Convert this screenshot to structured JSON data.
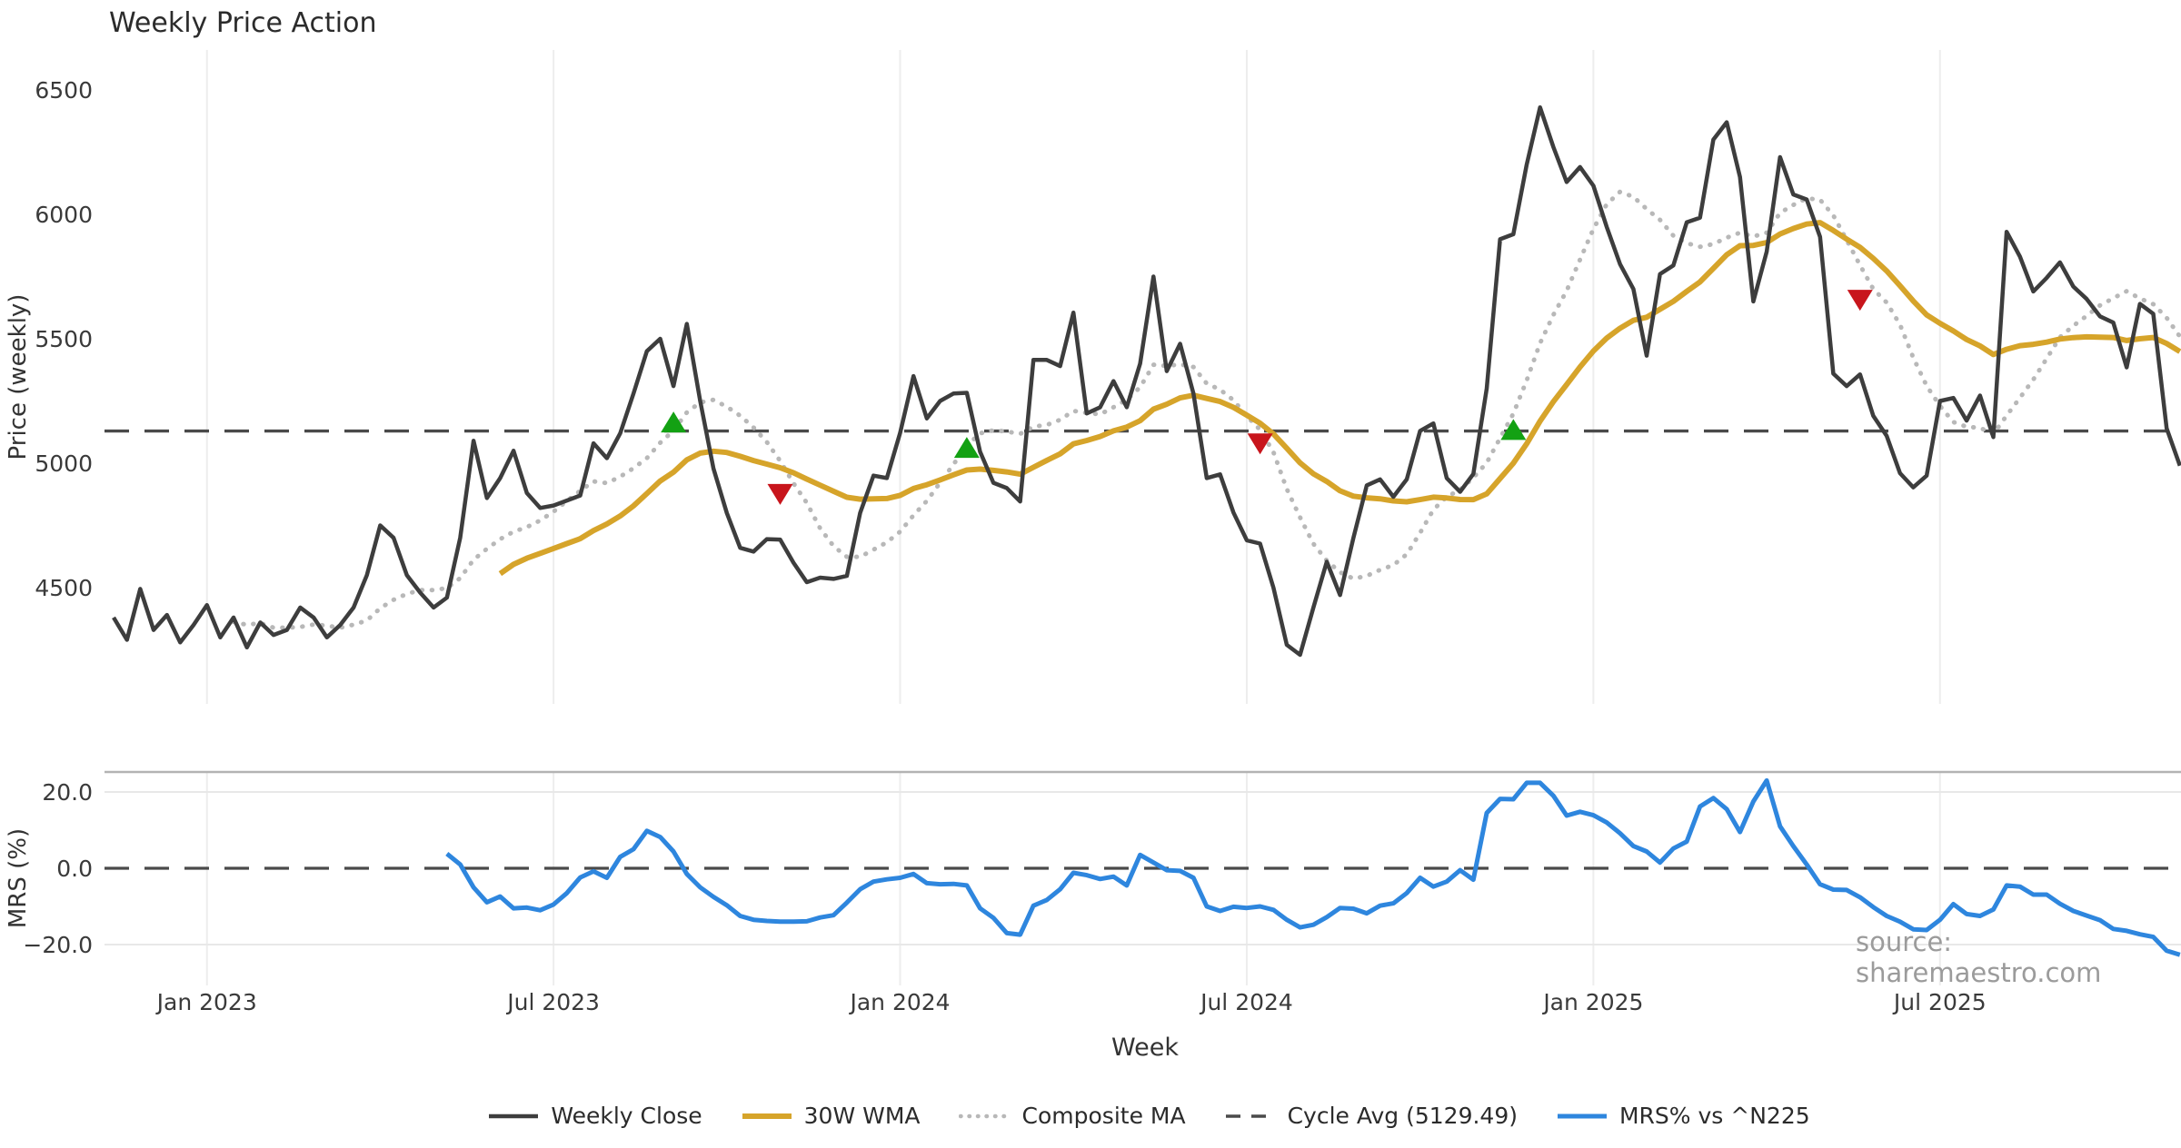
{
  "title": "Weekly Price Action",
  "xlabel": "Week",
  "watermark": "source: sharemaestro.com",
  "colors": {
    "close": "#3d3d3d",
    "wma": "#d6a42a",
    "composite": "#b8b8b8",
    "cycle": "#4a4a4a",
    "mrs": "#2e86de",
    "buy": "#13a113",
    "sell": "#c8151c",
    "grid": "#ededed",
    "mrs_grid": "#e8e8e8",
    "spine": "#b3b3b3",
    "tick_text": "#3a3a3a",
    "title_text": "#2b2b2b",
    "watermark_text": "#9b9b9b"
  },
  "legend": [
    {
      "label": "Weekly Close",
      "style": "solid",
      "color_key": "close",
      "width": 4.5
    },
    {
      "label": "30W WMA",
      "style": "solid",
      "color_key": "wma",
      "width": 6
    },
    {
      "label": "Composite MA",
      "style": "dotted",
      "color_key": "composite",
      "width": 4.5
    },
    {
      "label": "Cycle Avg (5129.49)",
      "style": "dashed",
      "color_key": "cycle",
      "width": 3.5
    },
    {
      "label": "MRS% vs ^N225",
      "style": "solid",
      "color_key": "mrs",
      "width": 5
    }
  ],
  "chart_data": {
    "type": "line",
    "title": "Weekly Price Action",
    "xlabel": "Week",
    "x_unit": "weekly index (0 = first plotted week, ~7 weeks before Jan 2023)",
    "x_ticks": [
      {
        "week": 7,
        "label": "Jan 2023"
      },
      {
        "week": 33,
        "label": "Jul 2023"
      },
      {
        "week": 59,
        "label": "Jan 2024"
      },
      {
        "week": 85,
        "label": "Jul 2024"
      },
      {
        "week": 111,
        "label": "Jan 2025"
      },
      {
        "week": 137,
        "label": "Jul 2025"
      }
    ],
    "panels": [
      {
        "name": "price",
        "ylabel": "Price (weekly)",
        "ylim": [
          4030,
          6660
        ],
        "yticks": [
          {
            "v": 6500,
            "label": "6500"
          },
          {
            "v": 6000,
            "label": "6000"
          },
          {
            "v": 5500,
            "label": "5500"
          },
          {
            "v": 5000,
            "label": "5000"
          },
          {
            "v": 4500,
            "label": "4500"
          }
        ],
        "grid": "vertical date gridlines only"
      },
      {
        "name": "mrs",
        "ylabel": "MRS (%)",
        "ylim": [
          -27,
          25
        ],
        "yticks": [
          {
            "v": 20,
            "label": "20.0"
          },
          {
            "v": 0,
            "label": "0.0"
          },
          {
            "v": -20,
            "label": "−20.0"
          }
        ],
        "grid": "horizontal at 20 / -20, dashed zero line, top spine"
      }
    ],
    "cycle_avg": 5129.49,
    "series": [
      {
        "name": "Weekly Close",
        "panel": "price",
        "start_week": 0,
        "values": [
          4380,
          4290,
          4495,
          4330,
          4390,
          4280,
          4350,
          4430,
          4300,
          4380,
          4260,
          4360,
          4310,
          4330,
          4420,
          4380,
          4300,
          4350,
          4420,
          4550,
          4750,
          4700,
          4550,
          4480,
          4420,
          4460,
          4700,
          5090,
          4860,
          4940,
          5050,
          4880,
          4820,
          4830,
          4850,
          4870,
          5080,
          5020,
          5120,
          5280,
          5450,
          5500,
          5310,
          5560,
          5250,
          4979,
          4800,
          4660,
          4645,
          4695,
          4693,
          4600,
          4522,
          4540,
          4535,
          4547,
          4800,
          4950,
          4940,
          5122,
          5350,
          5180,
          5250,
          5280,
          5283,
          5046,
          4921,
          4900,
          4846,
          5415,
          5415,
          5390,
          5605,
          5200,
          5225,
          5330,
          5225,
          5400,
          5750,
          5370,
          5480,
          5280,
          4940,
          4955,
          4802,
          4690,
          4677,
          4500,
          4270,
          4230,
          4420,
          4604,
          4470,
          4700,
          4911,
          4935,
          4865,
          4935,
          5130,
          5160,
          4940,
          4885,
          4957,
          5300,
          5900,
          5920,
          6200,
          6430,
          6270,
          6130,
          6190,
          6115,
          5950,
          5800,
          5700,
          5432,
          5760,
          5795,
          5968,
          5986,
          6300,
          6370,
          6150,
          5650,
          5850,
          6230,
          6080,
          6060,
          5910,
          5360,
          5310,
          5357,
          5190,
          5110,
          4960,
          4903,
          4950,
          5250,
          5262,
          5171,
          5272,
          5105,
          5930,
          5830,
          5690,
          5745,
          5807,
          5710,
          5660,
          5590,
          5565,
          5385,
          5640,
          5600,
          5140,
          4990
        ]
      },
      {
        "name": "30W WMA",
        "panel": "price",
        "derived": "linear_weighted_ma_of_weekly_close",
        "window": 30
      },
      {
        "name": "Composite MA",
        "panel": "price",
        "derived": "sma_of_weekly_close",
        "window": 10
      },
      {
        "name": "Cycle Avg",
        "panel": "price",
        "constant": 5129.49
      },
      {
        "name": "MRS% vs ^N225",
        "panel": "mrs",
        "start_week": 25,
        "values": [
          3.8,
          1.0,
          -5.0,
          -8.9,
          -7.4,
          -10.5,
          -10.3,
          -11.0,
          -9.5,
          -6.5,
          -2.4,
          -0.8,
          -2.5,
          3.0,
          5.0,
          9.8,
          8.2,
          4.4,
          -1.5,
          -5.0,
          -7.5,
          -9.7,
          -12.5,
          -13.5,
          -13.8,
          -14.0,
          -14.0,
          -13.9,
          -12.9,
          -12.3,
          -9.0,
          -5.5,
          -3.5,
          -2.9,
          -2.5,
          -1.5,
          -3.9,
          -4.2,
          -4.1,
          -4.5,
          -10.5,
          -13.0,
          -17.0,
          -17.4,
          -9.8,
          -8.3,
          -5.5,
          -1.2,
          -1.8,
          -2.8,
          -2.2,
          -4.5,
          3.5,
          1.5,
          -0.5,
          -0.7,
          -2.5,
          -10.0,
          -11.2,
          -10.1,
          -10.4,
          -10.0,
          -10.9,
          -13.5,
          -15.5,
          -14.8,
          -12.8,
          -10.4,
          -10.6,
          -11.8,
          -9.8,
          -9.2,
          -6.5,
          -2.5,
          -4.8,
          -3.5,
          -0.5,
          -3.0,
          14.5,
          18.2,
          18.1,
          22.4,
          22.4,
          19.0,
          13.8,
          14.8,
          13.9,
          12.0,
          9.2,
          5.8,
          4.4,
          1.5,
          5.2,
          7.0,
          16.2,
          18.4,
          15.5,
          9.5,
          17.5,
          23.0,
          11.0,
          5.8,
          1.0,
          -4.2,
          -5.6,
          -5.7,
          -7.6,
          -10.2,
          -12.5,
          -14.0,
          -16.0,
          -16.2,
          -13.5,
          -9.4,
          -12.0,
          -12.5,
          -10.8,
          -4.5,
          -4.8,
          -6.9,
          -6.9,
          -9.3,
          -11.2,
          -12.4,
          -13.6,
          -15.9,
          -16.4,
          -17.3,
          -18.0,
          -21.6,
          -22.7
        ]
      }
    ],
    "markers": {
      "buy": [
        {
          "week": 42,
          "value": 5160
        },
        {
          "week": 64,
          "value": 5058
        },
        {
          "week": 105,
          "value": 5130
        }
      ],
      "sell": [
        {
          "week": 50,
          "value": 4880
        },
        {
          "week": 86,
          "value": 5083
        },
        {
          "week": 131,
          "value": 5660
        }
      ]
    },
    "legend_position": "bottom center",
    "source_note": "source: sharemaestro.com"
  }
}
